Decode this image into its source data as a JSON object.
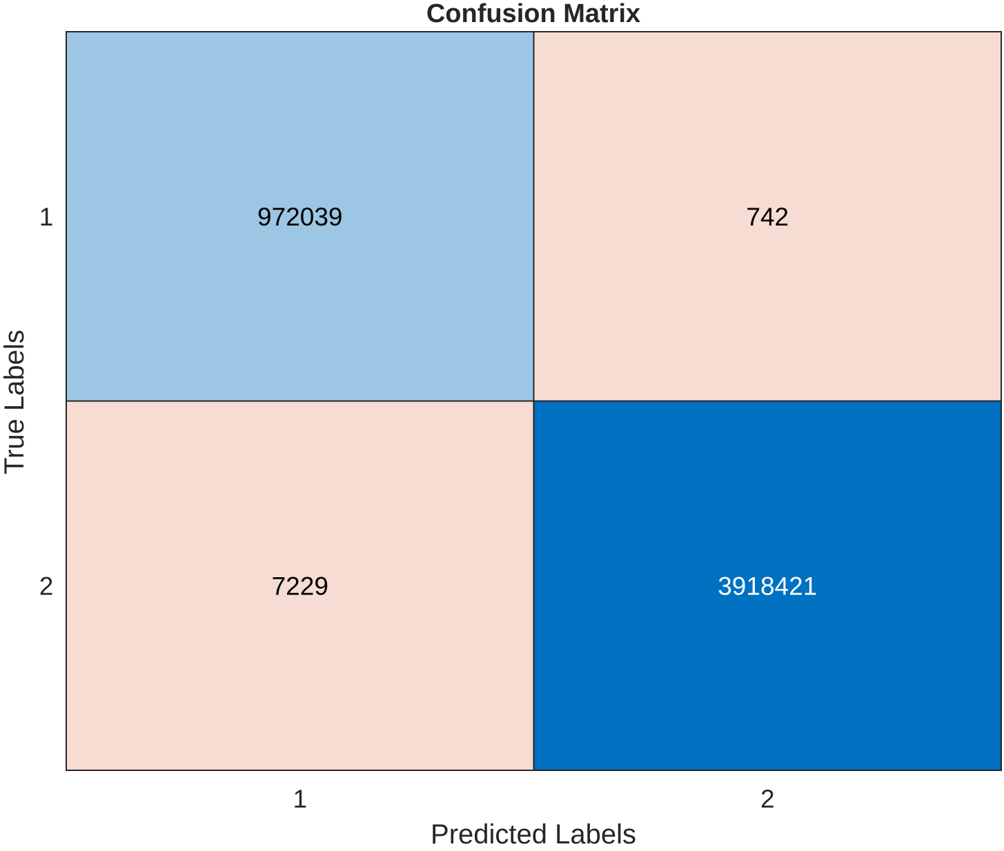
{
  "chart_data": {
    "type": "heatmap",
    "title": "Confusion Matrix",
    "xlabel": "Predicted Labels",
    "ylabel": "True Labels",
    "x_categories": [
      "1",
      "2"
    ],
    "y_categories": [
      "1",
      "2"
    ],
    "values": [
      [
        972039,
        742
      ],
      [
        7229,
        3918421
      ]
    ],
    "cell_colors": [
      [
        "#9dc6e4",
        "#f6dcd2"
      ],
      [
        "#f6dcd2",
        "#0070c0"
      ]
    ],
    "text_colors": [
      [
        "#000000",
        "#000000"
      ],
      [
        "#000000",
        "#ffffff"
      ]
    ],
    "border_color": "#262626",
    "text_color": "#262626"
  }
}
